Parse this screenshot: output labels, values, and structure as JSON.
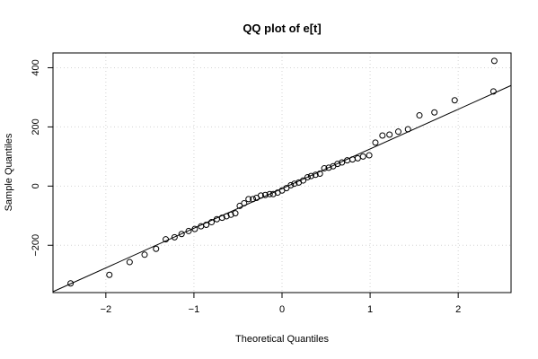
{
  "chart_data": {
    "type": "scatter",
    "title": "QQ plot of e[t]",
    "xlabel": "Theoretical Quantiles",
    "ylabel": "Sample Quantiles",
    "xlim": [
      -2.6,
      2.6
    ],
    "ylim": [
      -360,
      450
    ],
    "x_ticks": [
      -2,
      -1,
      0,
      1,
      2
    ],
    "y_ticks": [
      -200,
      0,
      200,
      400
    ],
    "x_tick_labels": [
      "−2",
      "−1",
      "0",
      "1",
      "2"
    ],
    "y_tick_labels": [
      "−200",
      "0",
      "200",
      "400"
    ],
    "grid": true,
    "reference_line": {
      "x": [
        -2.6,
        2.6
      ],
      "y": [
        -357,
        340
      ]
    },
    "points": [
      [
        -2.4,
        -329
      ],
      [
        -1.96,
        -300
      ],
      [
        -1.73,
        -257
      ],
      [
        -1.56,
        -232
      ],
      [
        -1.43,
        -212
      ],
      [
        -1.32,
        -180
      ],
      [
        -1.22,
        -173
      ],
      [
        -1.14,
        -162
      ],
      [
        -1.06,
        -152
      ],
      [
        -0.99,
        -145
      ],
      [
        -0.92,
        -136
      ],
      [
        -0.86,
        -131
      ],
      [
        -0.8,
        -122
      ],
      [
        -0.74,
        -112
      ],
      [
        -0.68,
        -107
      ],
      [
        -0.63,
        -102
      ],
      [
        -0.58,
        -97
      ],
      [
        -0.53,
        -92
      ],
      [
        -0.48,
        -67
      ],
      [
        -0.43,
        -58
      ],
      [
        -0.38,
        -44
      ],
      [
        -0.33,
        -44
      ],
      [
        -0.29,
        -40
      ],
      [
        -0.24,
        -32
      ],
      [
        -0.19,
        -30
      ],
      [
        -0.14,
        -27
      ],
      [
        -0.1,
        -27
      ],
      [
        -0.05,
        -22
      ],
      [
        0.0,
        -15
      ],
      [
        0.05,
        -7
      ],
      [
        0.1,
        3
      ],
      [
        0.14,
        8
      ],
      [
        0.19,
        12
      ],
      [
        0.24,
        19
      ],
      [
        0.29,
        30
      ],
      [
        0.33,
        34
      ],
      [
        0.38,
        38
      ],
      [
        0.43,
        42
      ],
      [
        0.48,
        60
      ],
      [
        0.53,
        62
      ],
      [
        0.58,
        67
      ],
      [
        0.63,
        75
      ],
      [
        0.68,
        80
      ],
      [
        0.74,
        87
      ],
      [
        0.8,
        90
      ],
      [
        0.86,
        94
      ],
      [
        0.92,
        100
      ],
      [
        0.99,
        104
      ],
      [
        1.06,
        147
      ],
      [
        1.14,
        171
      ],
      [
        1.22,
        174
      ],
      [
        1.32,
        184
      ],
      [
        1.43,
        192
      ],
      [
        1.56,
        239
      ],
      [
        1.73,
        249
      ],
      [
        1.96,
        290
      ],
      [
        2.4,
        320
      ],
      [
        2.41,
        423
      ]
    ]
  }
}
